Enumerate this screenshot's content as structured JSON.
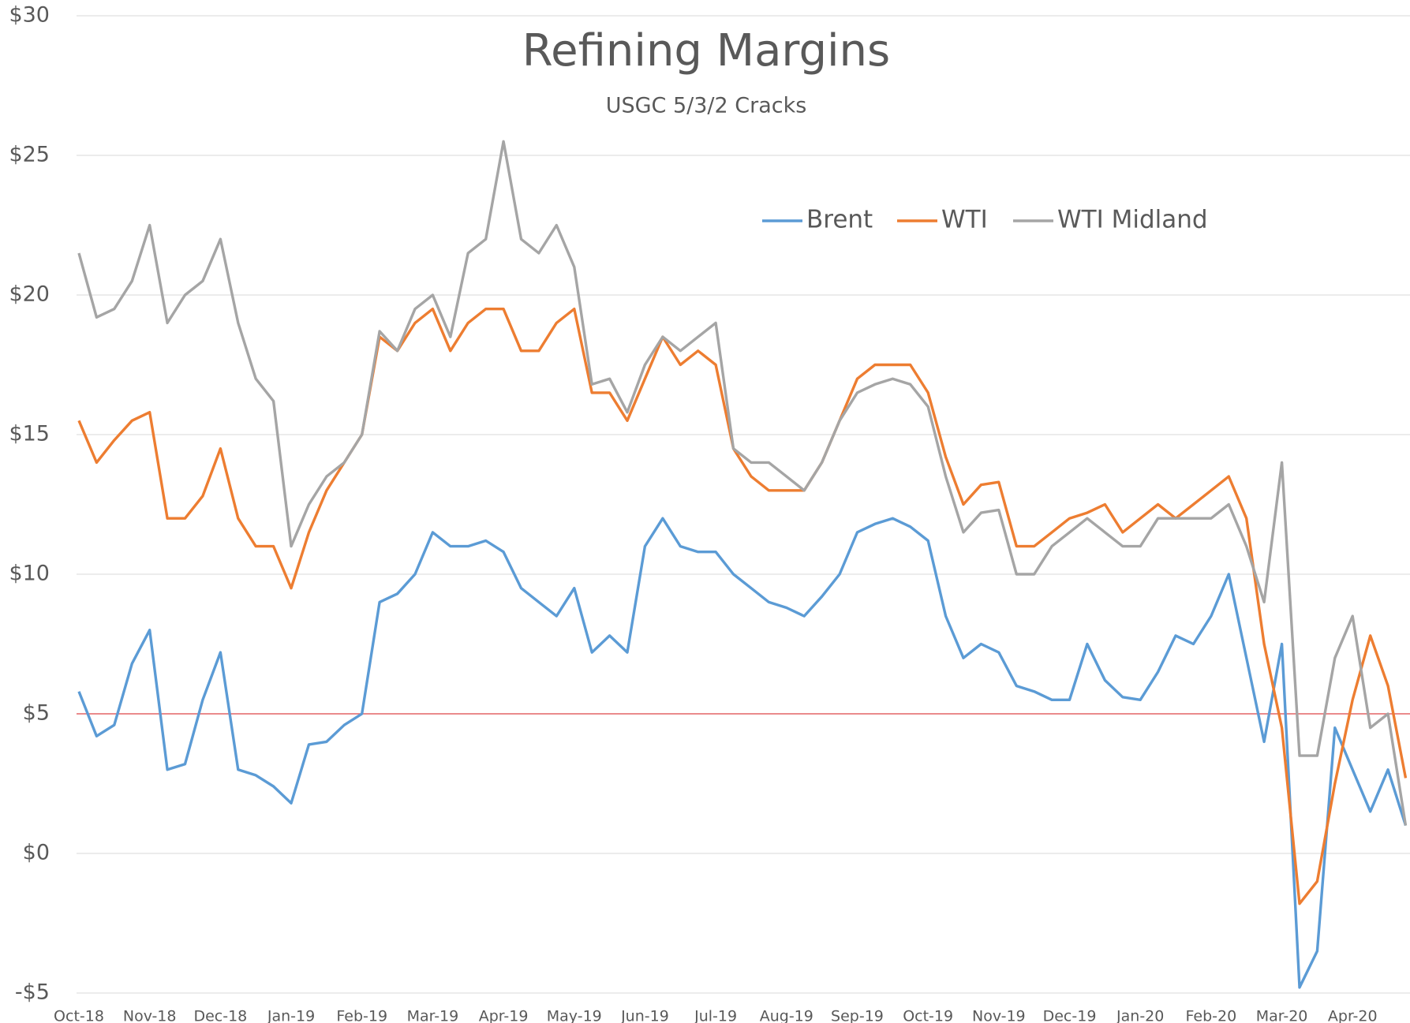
{
  "chart_data": {
    "type": "line",
    "title": "Refining Margins",
    "subtitle": "USGC 5/3/2 Cracks",
    "categories": [
      "Oct-18",
      null,
      null,
      null,
      "Nov-18",
      null,
      null,
      null,
      "Dec-18",
      null,
      null,
      null,
      "Jan-19",
      null,
      null,
      null,
      "Feb-19",
      null,
      null,
      null,
      "Mar-19",
      null,
      null,
      null,
      "Apr-19",
      null,
      null,
      null,
      "May-19",
      null,
      null,
      null,
      "Jun-19",
      null,
      null,
      null,
      "Jul-19",
      null,
      null,
      null,
      "Aug-19",
      null,
      null,
      null,
      "Sep-19",
      null,
      null,
      null,
      "Oct-19",
      null,
      null,
      null,
      "Nov-19",
      null,
      null,
      null,
      "Dec-19",
      null,
      null,
      null,
      "Jan-20",
      null,
      null,
      null,
      "Feb-20",
      null,
      null,
      null,
      "Mar-20",
      null,
      null,
      null,
      "Apr-20",
      null,
      null,
      null
    ],
    "series": [
      {
        "name": "Brent",
        "color": "#5b9bd5",
        "values": [
          5.8,
          4.2,
          4.6,
          6.8,
          8.0,
          3.0,
          3.2,
          5.5,
          7.2,
          3.0,
          2.8,
          2.4,
          1.8,
          3.9,
          4.0,
          4.6,
          5.0,
          9.0,
          9.3,
          10.0,
          11.5,
          11.0,
          11.0,
          11.2,
          10.8,
          9.5,
          9.0,
          8.5,
          9.5,
          7.2,
          7.8,
          7.2,
          11.0,
          12.0,
          11.0,
          10.8,
          10.8,
          10.0,
          9.5,
          9.0,
          8.8,
          8.5,
          9.2,
          10.0,
          11.5,
          11.8,
          12.0,
          11.7,
          11.2,
          8.5,
          7.0,
          7.5,
          7.2,
          6.0,
          5.8,
          5.5,
          5.5,
          7.5,
          6.2,
          5.6,
          5.5,
          6.5,
          7.8,
          7.5,
          8.5,
          10.0,
          7.0,
          4.0,
          7.5,
          -4.8,
          -3.5,
          4.5,
          3.0,
          1.5,
          3.0,
          1.0
        ]
      },
      {
        "name": "WTI",
        "color": "#ed7d31",
        "values": [
          15.5,
          14.0,
          14.8,
          15.5,
          15.8,
          12.0,
          12.0,
          12.8,
          14.5,
          12.0,
          11.0,
          11.0,
          9.5,
          11.5,
          13.0,
          14.0,
          15.0,
          18.5,
          18.0,
          19.0,
          19.5,
          18.0,
          19.0,
          19.5,
          19.5,
          18.0,
          18.0,
          19.0,
          19.5,
          16.5,
          16.5,
          15.5,
          17.0,
          18.5,
          17.5,
          18.0,
          17.5,
          14.5,
          13.5,
          13.0,
          13.0,
          13.0,
          14.0,
          15.5,
          17.0,
          17.5,
          17.5,
          17.5,
          16.5,
          14.2,
          12.5,
          13.2,
          13.3,
          11.0,
          11.0,
          11.5,
          12.0,
          12.2,
          12.5,
          11.5,
          12.0,
          12.5,
          12.0,
          12.5,
          13.0,
          13.5,
          12.0,
          7.5,
          4.5,
          -1.8,
          -1.0,
          2.5,
          5.5,
          7.8,
          6.0,
          2.7
        ]
      },
      {
        "name": "WTI Midland",
        "color": "#a5a5a5",
        "values": [
          21.5,
          19.2,
          19.5,
          20.5,
          22.5,
          19.0,
          20.0,
          20.5,
          22.0,
          19.0,
          17.0,
          16.2,
          11.0,
          12.5,
          13.5,
          14.0,
          15.0,
          18.7,
          18.0,
          19.5,
          20.0,
          18.5,
          21.5,
          22.0,
          25.5,
          22.0,
          21.5,
          22.5,
          21.0,
          16.8,
          17.0,
          15.8,
          17.5,
          18.5,
          18.0,
          18.5,
          19.0,
          14.5,
          14.0,
          14.0,
          13.5,
          13.0,
          14.0,
          15.5,
          16.5,
          16.8,
          17.0,
          16.8,
          16.0,
          13.5,
          11.5,
          12.2,
          12.3,
          10.0,
          10.0,
          11.0,
          11.5,
          12.0,
          11.5,
          11.0,
          11.0,
          12.0,
          12.0,
          12.0,
          12.0,
          12.5,
          11.0,
          9.0,
          14.0,
          3.5,
          3.5,
          7.0,
          8.5,
          4.5,
          5.0,
          1.0
        ]
      }
    ],
    "reference_line": {
      "value": 5,
      "color": "#e8696b"
    },
    "ylim": [
      -5,
      30
    ],
    "yticks": [
      {
        "value": -5,
        "label": "-$5"
      },
      {
        "value": 0,
        "label": "$0"
      },
      {
        "value": 5,
        "label": "$5"
      },
      {
        "value": 10,
        "label": "$10"
      },
      {
        "value": 15,
        "label": "$15"
      },
      {
        "value": 20,
        "label": "$20"
      },
      {
        "value": 25,
        "label": "$25"
      },
      {
        "value": 30,
        "label": "$30"
      }
    ],
    "grid": true,
    "legend": "top-right"
  }
}
